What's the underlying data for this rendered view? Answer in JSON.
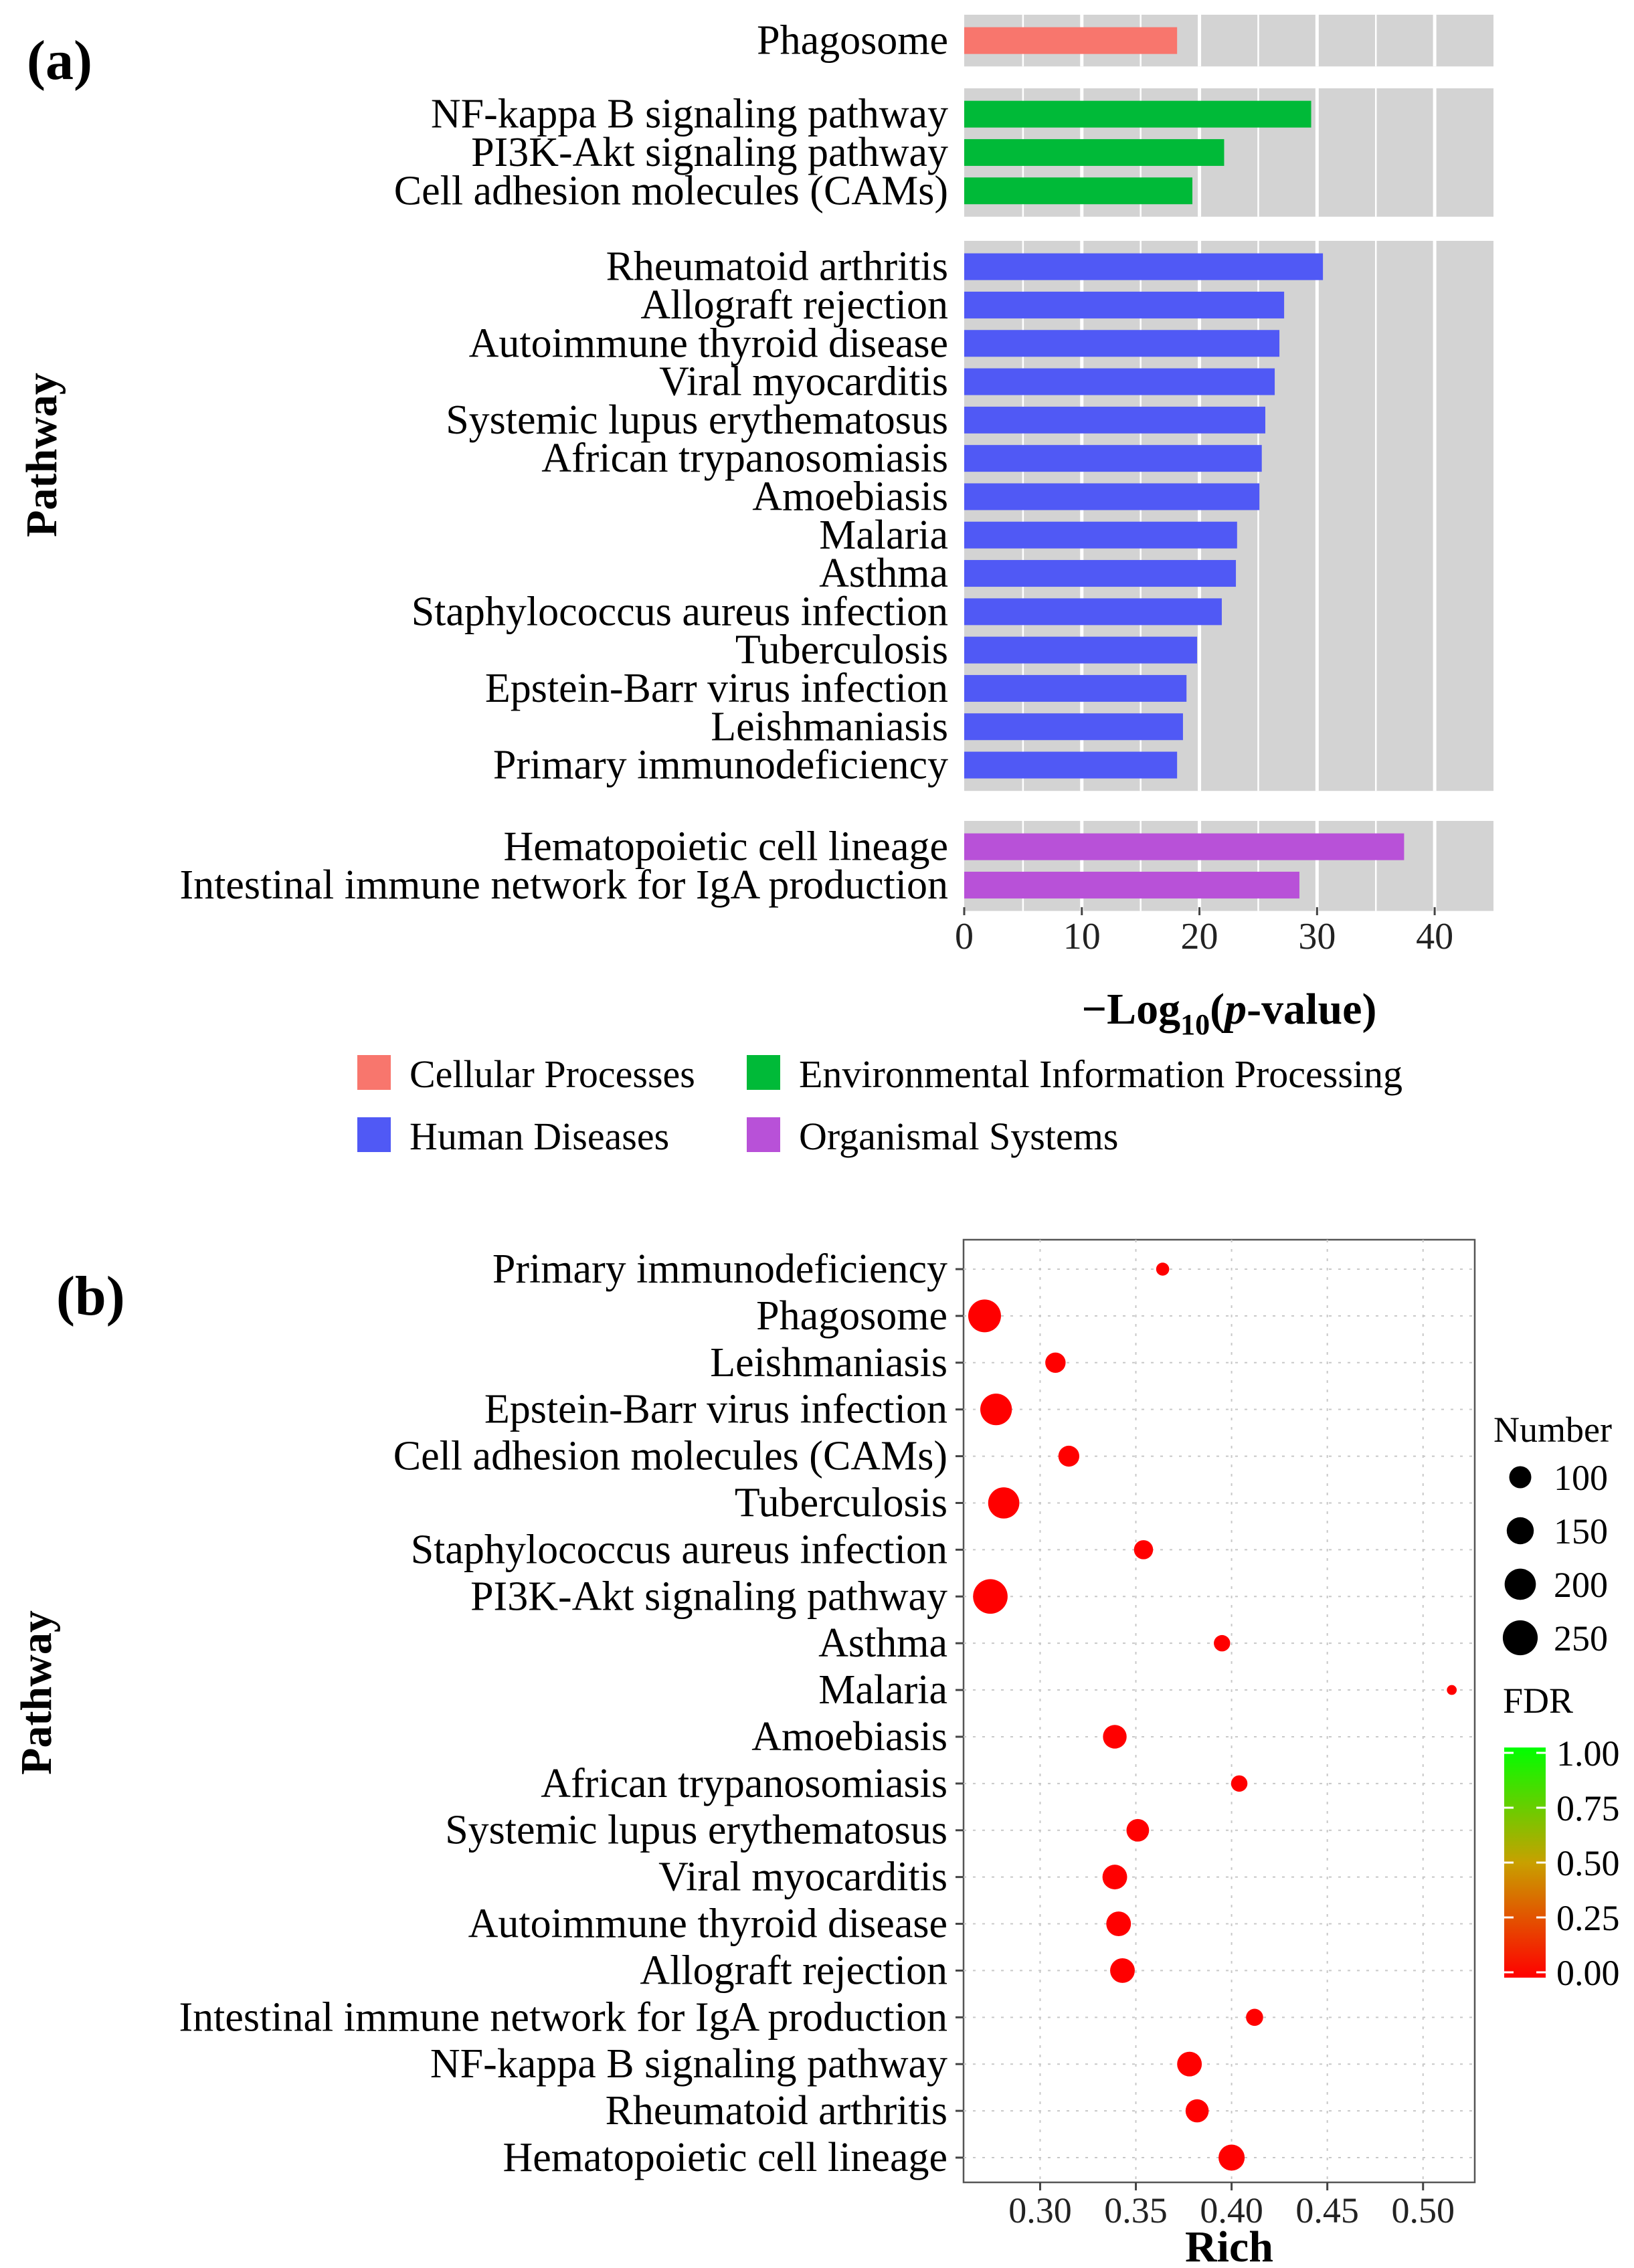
{
  "panel_a": {
    "panel_label": "(a)",
    "chart_data": {
      "type": "bar",
      "orientation": "horizontal",
      "ylabel": "Pathway",
      "xlabel_parts": [
        "−Log",
        "10",
        "(",
        "p",
        "-value)"
      ],
      "xticks": [
        0,
        10,
        20,
        30,
        40
      ],
      "xlim": [
        0,
        45
      ],
      "grid": true,
      "legend_position": "bottom",
      "groups": [
        {
          "name": "Cellular Processes",
          "color": "#F8766D",
          "pathways": [
            {
              "label": "Phagosome",
              "value": 18.1
            }
          ]
        },
        {
          "name": "Environmental Information Processing",
          "color": "#00BA38",
          "pathways": [
            {
              "label": "NF-kappa B signaling pathway",
              "value": 29.5
            },
            {
              "label": "PI3K-Akt signaling pathway",
              "value": 22.1
            },
            {
              "label": "Cell adhesion molecules (CAMs)",
              "value": 19.4
            }
          ]
        },
        {
          "name": "Human Diseases",
          "color": "#5059F5",
          "pathways": [
            {
              "label": "Rheumatoid arthritis",
              "value": 30.5
            },
            {
              "label": "Allograft rejection",
              "value": 27.2
            },
            {
              "label": "Autoimmune thyroid disease",
              "value": 26.8
            },
            {
              "label": "Viral myocarditis",
              "value": 26.4
            },
            {
              "label": "Systemic lupus erythematosus",
              "value": 25.6
            },
            {
              "label": "African trypanosomiasis",
              "value": 25.3
            },
            {
              "label": "Amoebiasis",
              "value": 25.1
            },
            {
              "label": "Malaria",
              "value": 23.2
            },
            {
              "label": "Asthma",
              "value": 23.1
            },
            {
              "label": "Staphylococcus aureus infection",
              "value": 21.9
            },
            {
              "label": "Tuberculosis",
              "value": 19.8
            },
            {
              "label": "Epstein-Barr virus infection",
              "value": 18.9
            },
            {
              "label": "Leishmaniasis",
              "value": 18.6
            },
            {
              "label": "Primary immunodeficiency",
              "value": 18.1
            }
          ]
        },
        {
          "name": "Organismal Systems",
          "color": "#B851D8",
          "pathways": [
            {
              "label": "Hematopoietic cell lineage",
              "value": 37.4
            },
            {
              "label": "Intestinal immune network for IgA production",
              "value": 28.5
            }
          ]
        }
      ]
    }
  },
  "panel_b": {
    "panel_label": "(b)",
    "chart_data": {
      "type": "scatter",
      "ylabel": "Pathway",
      "xlabel": "Rich",
      "xticks": [
        0.3,
        0.35,
        0.4,
        0.45,
        0.5
      ],
      "xlim": [
        0.26,
        0.527
      ],
      "grid": true,
      "size_legend": {
        "title": "Number",
        "values": [
          100,
          150,
          200,
          250
        ]
      },
      "color_legend": {
        "title": "FDR",
        "ticks": [
          "1.00",
          "0.75",
          "0.50",
          "0.25",
          "0.00"
        ],
        "low_color": "#FF0000",
        "mid_color": "#C8A000",
        "high_color": "#00FF00"
      },
      "points": [
        {
          "label": "Primary immunodeficiency",
          "rich": 0.364,
          "number": 35,
          "fdr": 0.0
        },
        {
          "label": "Phagosome",
          "rich": 0.271,
          "number": 220,
          "fdr": 0.0
        },
        {
          "label": "Leishmaniasis",
          "rich": 0.308,
          "number": 85,
          "fdr": 0.0
        },
        {
          "label": "Epstein-Barr virus infection",
          "rich": 0.277,
          "number": 205,
          "fdr": 0.0
        },
        {
          "label": "Cell adhesion molecules (CAMs)",
          "rich": 0.315,
          "number": 90,
          "fdr": 0.0
        },
        {
          "label": "Tuberculosis",
          "rich": 0.281,
          "number": 200,
          "fdr": 0.0
        },
        {
          "label": "Staphylococcus aureus infection",
          "rich": 0.354,
          "number": 75,
          "fdr": 0.0
        },
        {
          "label": "PI3K-Akt signaling pathway",
          "rich": 0.274,
          "number": 245,
          "fdr": 0.0
        },
        {
          "label": "Asthma",
          "rich": 0.395,
          "number": 55,
          "fdr": 0.0
        },
        {
          "label": "Malaria",
          "rich": 0.515,
          "number": 20,
          "fdr": 0.0
        },
        {
          "label": "Amoebiasis",
          "rich": 0.339,
          "number": 115,
          "fdr": 0.0
        },
        {
          "label": "African trypanosomiasis",
          "rich": 0.404,
          "number": 55,
          "fdr": 0.0
        },
        {
          "label": "Systemic lupus erythematosus",
          "rich": 0.351,
          "number": 105,
          "fdr": 0.0
        },
        {
          "label": "Viral myocarditis",
          "rich": 0.339,
          "number": 125,
          "fdr": 0.0
        },
        {
          "label": "Autoimmune thyroid disease",
          "rich": 0.341,
          "number": 125,
          "fdr": 0.0
        },
        {
          "label": "Allograft rejection",
          "rich": 0.343,
          "number": 125,
          "fdr": 0.0
        },
        {
          "label": "Intestinal immune network for IgA production",
          "rich": 0.412,
          "number": 60,
          "fdr": 0.0
        },
        {
          "label": "NF-kappa B signaling pathway",
          "rich": 0.378,
          "number": 125,
          "fdr": 0.0
        },
        {
          "label": "Rheumatoid arthritis",
          "rich": 0.382,
          "number": 110,
          "fdr": 0.0
        },
        {
          "label": "Hematopoietic cell lineage",
          "rich": 0.4,
          "number": 140,
          "fdr": 0.0
        }
      ]
    }
  }
}
